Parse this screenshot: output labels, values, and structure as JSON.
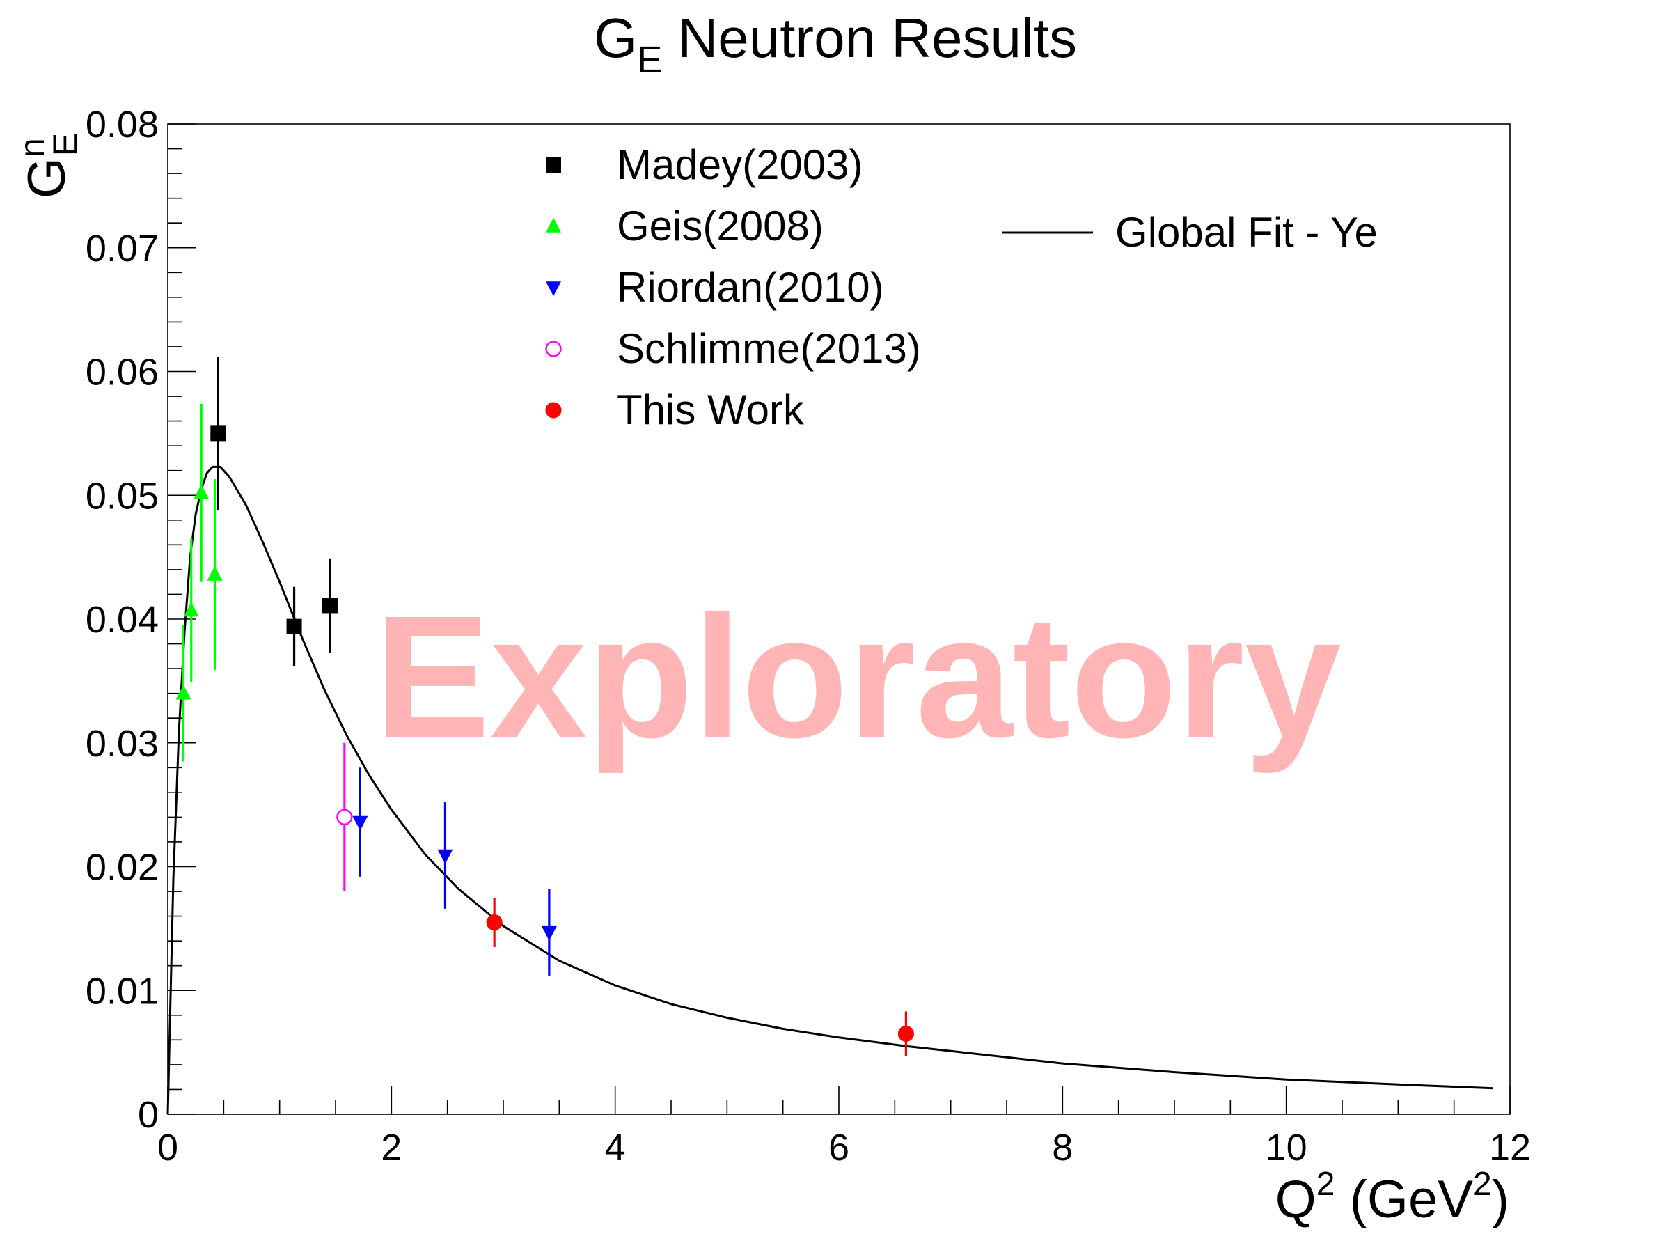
{
  "chart_data": {
    "type": "scatter",
    "title": {
      "main": "G",
      "sub": "E",
      "rest": " Neutron Results"
    },
    "xlabel": {
      "main": "Q",
      "sup": "2",
      "mid": " (GeV",
      "sup2": "2",
      "end": ")"
    },
    "ylabel": {
      "main": "G",
      "sup": "n",
      "sub": "E"
    },
    "xlim": [
      0,
      12
    ],
    "ylim": [
      0,
      0.08
    ],
    "xticks": [
      {
        "v": 0,
        "label": "0"
      },
      {
        "v": 2,
        "label": "2"
      },
      {
        "v": 4,
        "label": "4"
      },
      {
        "v": 6,
        "label": "6"
      },
      {
        "v": 8,
        "label": "8"
      },
      {
        "v": 10,
        "label": "10"
      },
      {
        "v": 12,
        "label": "12"
      }
    ],
    "yticks": [
      {
        "v": 0,
        "label": "0"
      },
      {
        "v": 0.01,
        "label": "0.01"
      },
      {
        "v": 0.02,
        "label": "0.02"
      },
      {
        "v": 0.03,
        "label": "0.03"
      },
      {
        "v": 0.04,
        "label": "0.04"
      },
      {
        "v": 0.05,
        "label": "0.05"
      },
      {
        "v": 0.06,
        "label": "0.06"
      },
      {
        "v": 0.07,
        "label": "0.07"
      },
      {
        "v": 0.08,
        "label": "0.08"
      }
    ],
    "watermark": "Exploratory",
    "legend_position": "top",
    "series": [
      {
        "name": "Madey(2003)",
        "marker": "square",
        "color": "#000000",
        "ecolor": "#000000",
        "points": [
          {
            "x": 0.45,
            "y": 0.055,
            "err": 0.0062
          },
          {
            "x": 1.13,
            "y": 0.0394,
            "err": 0.0032
          },
          {
            "x": 1.45,
            "y": 0.0411,
            "err": 0.0038
          }
        ]
      },
      {
        "name": "Geis(2008)",
        "marker": "triangle-up",
        "color": "#00ff00",
        "ecolor": "#00ff00",
        "points": [
          {
            "x": 0.14,
            "y": 0.034,
            "err": 0.0055
          },
          {
            "x": 0.21,
            "y": 0.0407,
            "err": 0.0058
          },
          {
            "x": 0.3,
            "y": 0.0502,
            "err": 0.0072
          },
          {
            "x": 0.42,
            "y": 0.0436,
            "err": 0.0077
          }
        ]
      },
      {
        "name": "Riordan(2010)",
        "marker": "triangle-down",
        "color": "#0000ff",
        "ecolor": "#0000ff",
        "points": [
          {
            "x": 1.72,
            "y": 0.0236,
            "err": 0.0044
          },
          {
            "x": 2.48,
            "y": 0.0209,
            "err": 0.0043
          },
          {
            "x": 3.41,
            "y": 0.0147,
            "err": 0.0035
          }
        ]
      },
      {
        "name": "Schlimme(2013)",
        "marker": "circle-open",
        "color": "#ff00ff",
        "ecolor": "#ff00ff",
        "points": [
          {
            "x": 1.58,
            "y": 0.024,
            "err": 0.006
          }
        ]
      },
      {
        "name": "This Work",
        "marker": "circle",
        "color": "#ff0000",
        "ecolor": "#ff0000",
        "points": [
          {
            "x": 2.92,
            "y": 0.0155,
            "err": 0.002
          },
          {
            "x": 6.6,
            "y": 0.0065,
            "err": 0.0018
          }
        ]
      }
    ],
    "fit": {
      "name": "Global Fit - Ye",
      "color": "#000000",
      "x": [
        0.0,
        0.05,
        0.1,
        0.15,
        0.2,
        0.25,
        0.3,
        0.35,
        0.4,
        0.47,
        0.55,
        0.7,
        0.85,
        1.0,
        1.2,
        1.4,
        1.6,
        1.8,
        2.0,
        2.3,
        2.6,
        3.0,
        3.5,
        4.0,
        4.5,
        5.0,
        5.5,
        6.0,
        6.6,
        7.0,
        8.0,
        9.0,
        10.0,
        11.0,
        11.85
      ],
      "y": [
        0.0,
        0.019,
        0.031,
        0.039,
        0.045,
        0.0485,
        0.0505,
        0.0518,
        0.0523,
        0.0523,
        0.0515,
        0.0492,
        0.0462,
        0.043,
        0.0385,
        0.0343,
        0.0306,
        0.0274,
        0.0246,
        0.021,
        0.0182,
        0.0152,
        0.0124,
        0.0104,
        0.0089,
        0.0078,
        0.0069,
        0.0062,
        0.0055,
        0.0051,
        0.0041,
        0.0034,
        0.0028,
        0.0024,
        0.0021
      ]
    }
  }
}
